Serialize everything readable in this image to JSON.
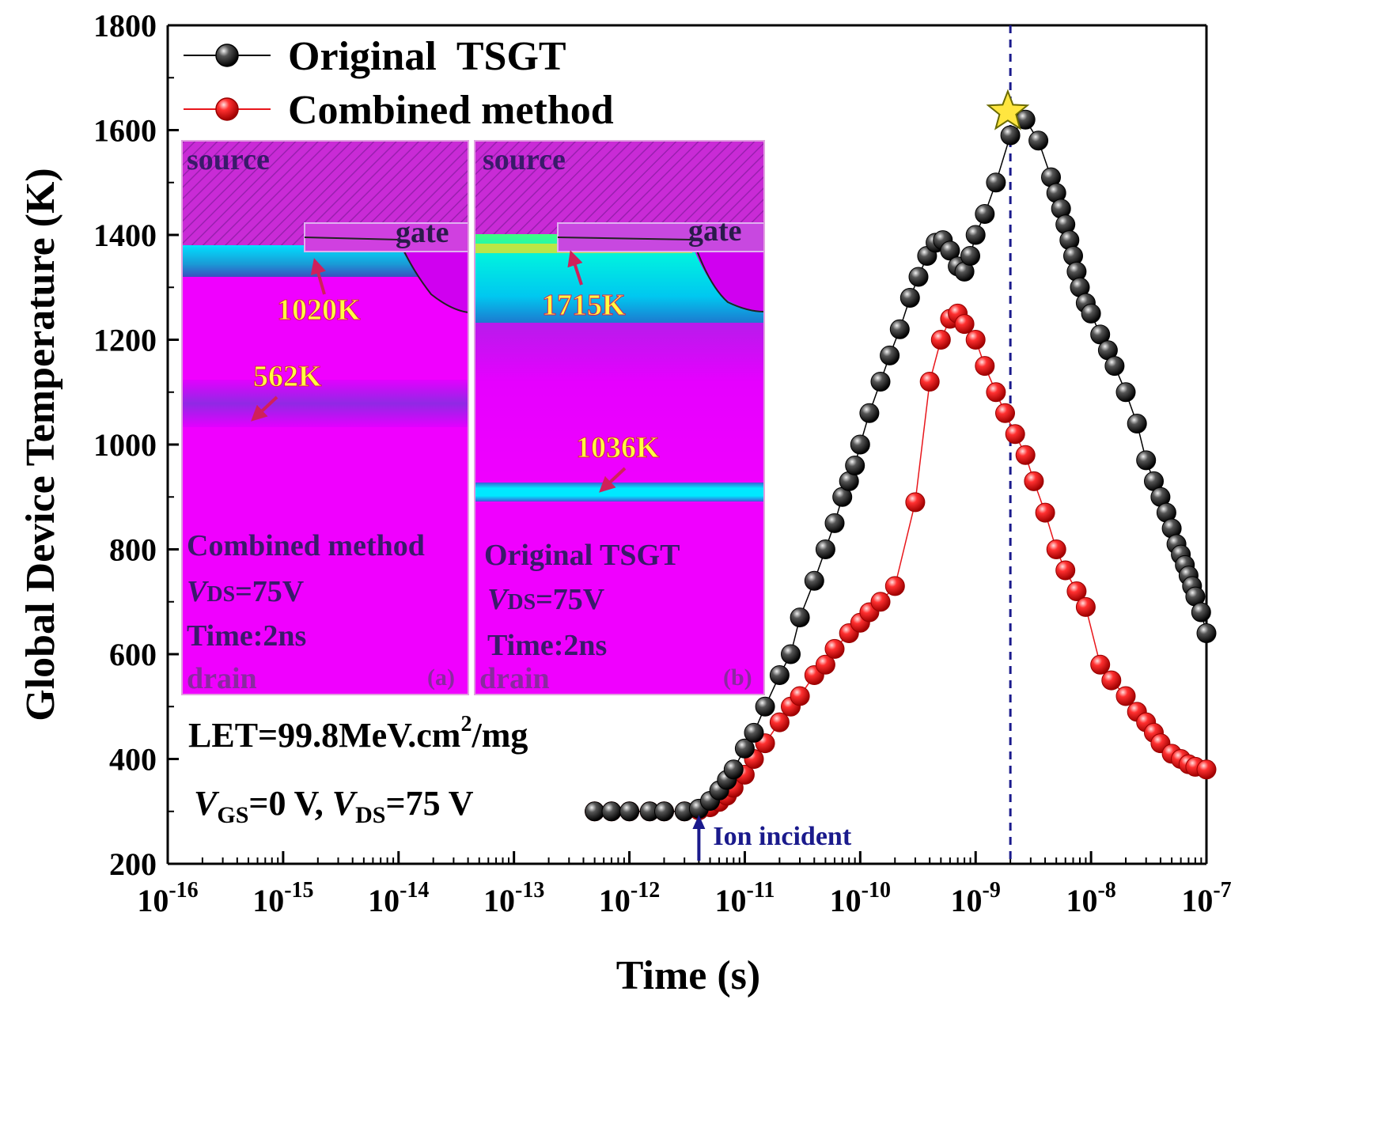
{
  "chart_data": {
    "type": "scatter",
    "title": "",
    "xlabel": "Time (s)",
    "ylabel": "Global Device Temperature (K)",
    "xscale": "log",
    "xlim_exp": [
      -16,
      -7
    ],
    "ylim": [
      200,
      1800
    ],
    "yticks": [
      200,
      400,
      600,
      800,
      1000,
      1200,
      1400,
      1600,
      1800
    ],
    "xtick_base": "10",
    "xtick_exponents": [
      "-16",
      "-15",
      "-14",
      "-13",
      "-12",
      "-11",
      "-10",
      "-9",
      "-8",
      "-7"
    ],
    "legend_position": "top-left",
    "series": [
      {
        "name": "Original  TSGT",
        "color": "#000000",
        "x": [
          5e-13,
          7e-13,
          1e-12,
          1.5e-12,
          2e-12,
          3e-12,
          4e-12,
          5e-12,
          6e-12,
          7e-12,
          8e-12,
          1e-11,
          1.2e-11,
          1.5e-11,
          2e-11,
          2.5e-11,
          3e-11,
          4e-11,
          5e-11,
          6e-11,
          7e-11,
          8e-11,
          9e-11,
          1e-10,
          1.2e-10,
          1.5e-10,
          1.8e-10,
          2.2e-10,
          2.7e-10,
          3.2e-10,
          3.8e-10,
          4.5e-10,
          5.2e-10,
          6e-10,
          7e-10,
          8e-10,
          9e-10,
          1e-09,
          1.2e-09,
          1.5e-09,
          2e-09,
          2.7e-09,
          3.5e-09,
          4.5e-09,
          5e-09,
          5.5e-09,
          6e-09,
          6.5e-09,
          7e-09,
          7.5e-09,
          8e-09,
          9e-09,
          1e-08,
          1.2e-08,
          1.4e-08,
          1.6e-08,
          2e-08,
          2.5e-08,
          3e-08,
          3.5e-08,
          4e-08,
          4.5e-08,
          5e-08,
          5.5e-08,
          6e-08,
          6.5e-08,
          7e-08,
          7.5e-08,
          8e-08,
          9e-08,
          1e-07
        ],
        "y": [
          300,
          300,
          300,
          300,
          300,
          300,
          305,
          320,
          340,
          360,
          380,
          420,
          450,
          500,
          560,
          600,
          670,
          740,
          800,
          850,
          900,
          930,
          960,
          1000,
          1060,
          1120,
          1170,
          1220,
          1280,
          1320,
          1360,
          1385,
          1390,
          1370,
          1340,
          1330,
          1360,
          1400,
          1440,
          1500,
          1590,
          1620,
          1580,
          1510,
          1480,
          1450,
          1420,
          1390,
          1360,
          1330,
          1300,
          1270,
          1250,
          1210,
          1180,
          1150,
          1100,
          1040,
          970,
          930,
          900,
          870,
          840,
          810,
          790,
          770,
          750,
          730,
          710,
          680,
          640
        ]
      },
      {
        "name": "Combined method",
        "color": "#e8161b",
        "x": [
          5e-13,
          7e-13,
          1e-12,
          1.5e-12,
          2e-12,
          3e-12,
          4e-12,
          5e-12,
          6e-12,
          7e-12,
          8e-12,
          1e-11,
          1.2e-11,
          1.5e-11,
          2e-11,
          2.5e-11,
          3e-11,
          4e-11,
          5e-11,
          6e-11,
          8e-11,
          1e-10,
          1.2e-10,
          1.5e-10,
          2e-10,
          3e-10,
          4e-10,
          5e-10,
          6e-10,
          7e-10,
          8e-10,
          1e-09,
          1.2e-09,
          1.5e-09,
          1.8e-09,
          2.2e-09,
          2.7e-09,
          3.2e-09,
          4e-09,
          5e-09,
          6e-09,
          7.5e-09,
          9e-09,
          1.2e-08,
          1.5e-08,
          2e-08,
          2.5e-08,
          3e-08,
          3.5e-08,
          4e-08,
          5e-08,
          6e-08,
          7e-08,
          8e-08,
          1e-07
        ],
        "y": [
          300,
          300,
          300,
          300,
          300,
          300,
          302,
          308,
          318,
          330,
          345,
          370,
          400,
          430,
          470,
          500,
          520,
          560,
          580,
          610,
          640,
          660,
          680,
          700,
          730,
          890,
          1120,
          1200,
          1240,
          1250,
          1230,
          1200,
          1150,
          1100,
          1060,
          1020,
          980,
          930,
          870,
          800,
          760,
          720,
          690,
          580,
          550,
          520,
          490,
          470,
          450,
          430,
          410,
          400,
          390,
          385,
          380
        ]
      }
    ],
    "annotations": {
      "ion_incident": {
        "label": "Ion incident",
        "x": 4e-12
      },
      "vertical_dashed_line_x": 2e-09,
      "peak_star": {
        "x": 1.9e-09,
        "y": 1635
      },
      "let_text": "LET=99.8MeV.cm",
      "let_sup": "2",
      "let_unit": "/mg",
      "bias_v1": "V",
      "bias_gs": "GS",
      "bias_mid": "=0 V, ",
      "bias_v2": "V",
      "bias_ds": "DS",
      "bias_end": "=75 V"
    },
    "insets": [
      {
        "panel": "(a)",
        "source": "source",
        "gate": "gate",
        "drain": "drain",
        "hot1": "1020K",
        "hot2": "562K",
        "method": "Combined method",
        "v_letter": "V",
        "v_sub": "DS",
        "v_value": "=75V",
        "time": "Time:2ns"
      },
      {
        "panel": "(b)",
        "source": "source",
        "gate": "gate",
        "drain": "drain",
        "hot1": "1715K",
        "hot2": "1036K",
        "method": "Original TSGT",
        "v_letter": "V",
        "v_sub": "DS",
        "v_value": "=75V",
        "time": "Time:2ns"
      }
    ]
  },
  "colors": {
    "series_black": "#000000",
    "series_red": "#e8161b",
    "magenta": "#ff00ff",
    "cyan": "#00d8f0",
    "navy": "#1a1a8c",
    "label_yellow": "#ffff40"
  }
}
